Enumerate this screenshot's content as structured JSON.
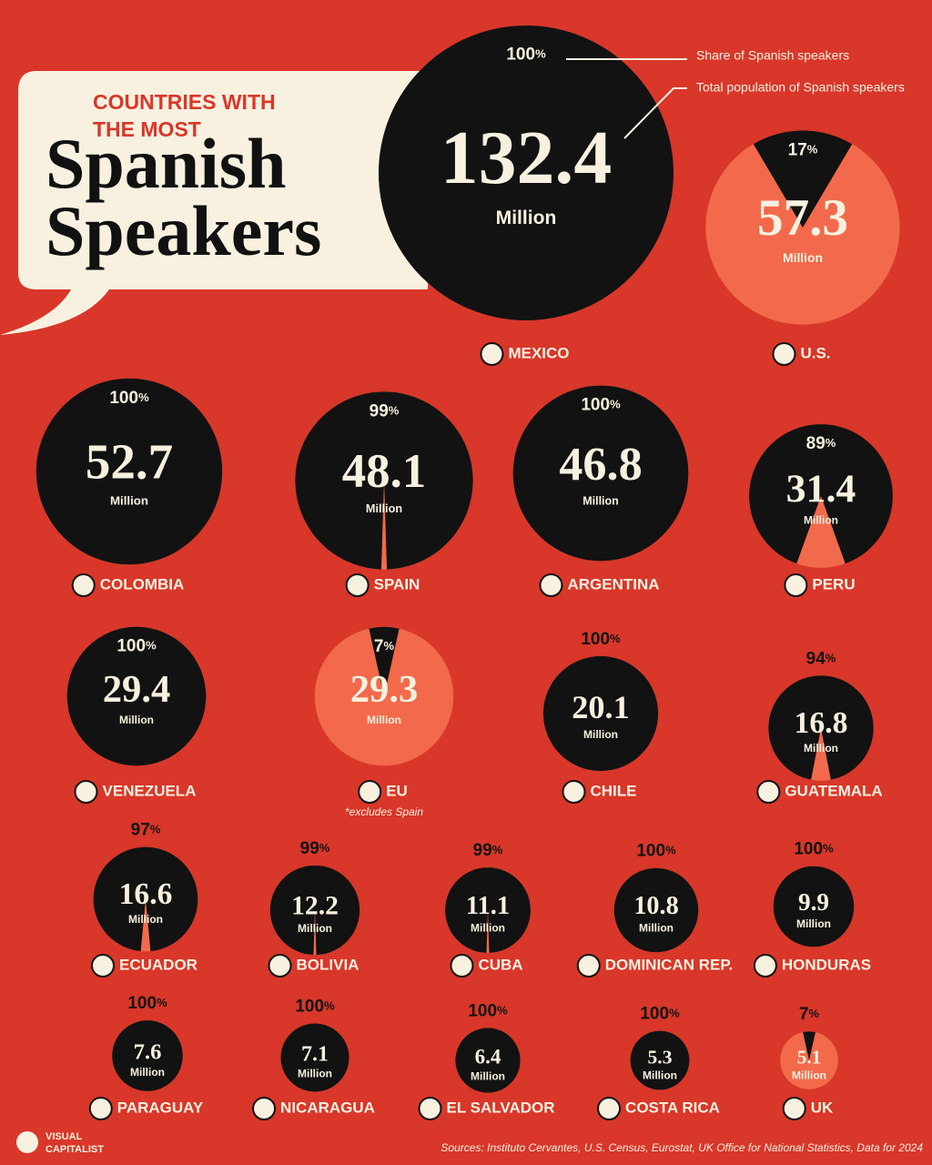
{
  "chart_data": {
    "type": "bubble",
    "kicker_lines": [
      "COUNTRIES WITH",
      "THE MOST"
    ],
    "title_lines": [
      "Spanish",
      "Speakers"
    ],
    "categories": [
      "MEXICO",
      "U.S.",
      "COLOMBIA",
      "SPAIN",
      "ARGENTINA",
      "PERU",
      "VENEZUELA",
      "EU",
      "CHILE",
      "GUATEMALA",
      "ECUADOR",
      "BOLIVIA",
      "CUBA",
      "DOMINICAN REP.",
      "HONDURAS",
      "PARAGUAY",
      "NICARAGUA",
      "EL SALVADOR",
      "COSTA RICA",
      "UK"
    ],
    "series": [
      {
        "name": "Total population of Spanish speakers",
        "color": "#f26a4b",
        "values": [
          132.4,
          57.3,
          52.7,
          48.1,
          46.8,
          31.4,
          29.4,
          29.3,
          20.1,
          16.8,
          16.6,
          12.2,
          11.1,
          10.8,
          9.9,
          7.6,
          7.1,
          6.4,
          5.3,
          5.1
        ]
      },
      {
        "name": "Share of Spanish speakers",
        "color": "#121212",
        "values": [
          100,
          17,
          100,
          99,
          100,
          89,
          100,
          7,
          100,
          94,
          97,
          99,
          99,
          100,
          100,
          100,
          100,
          100,
          100,
          7
        ]
      }
    ],
    "population_unit": "Million",
    "share_unit": "%",
    "footnote": "*excludes Spain",
    "source": "Sources: Instituto Cervantes, U.S. Census, Eurostat, UK Office for National Statistics, Data for 2024",
    "brand_lines": [
      "VISUAL",
      "CAPITALIST"
    ]
  }
}
